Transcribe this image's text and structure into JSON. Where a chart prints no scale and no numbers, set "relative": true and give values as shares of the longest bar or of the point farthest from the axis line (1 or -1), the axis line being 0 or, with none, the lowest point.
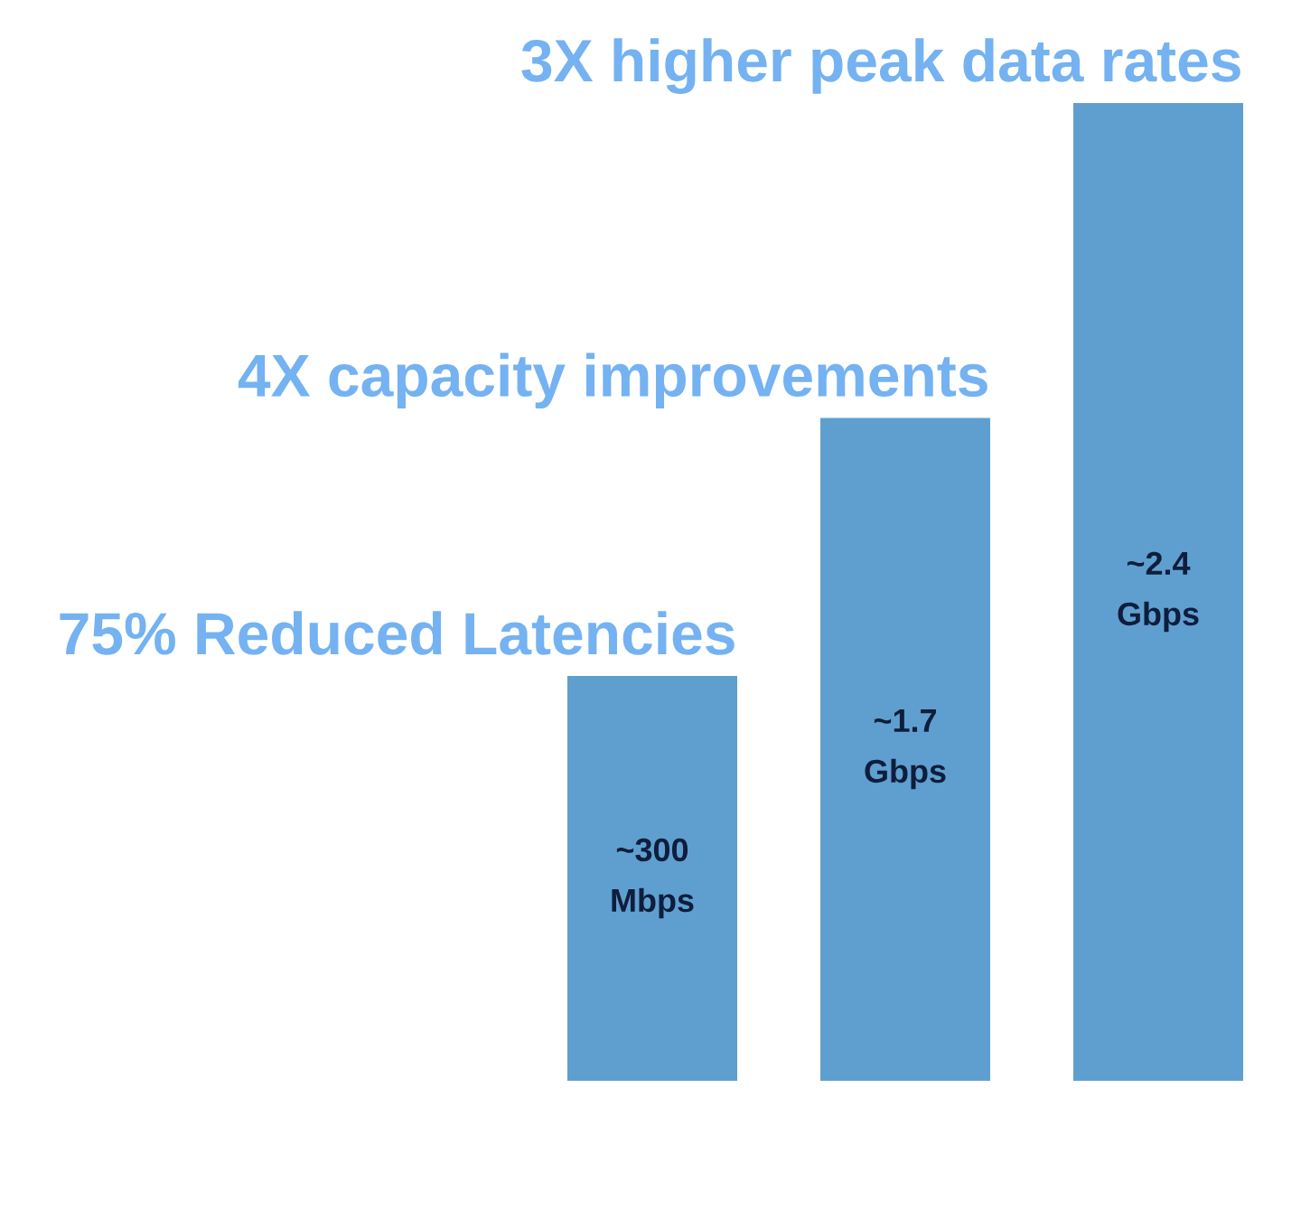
{
  "chart_data": {
    "type": "bar",
    "relative": true,
    "categories": [
      null,
      null,
      null
    ],
    "values": [
      0.414,
      0.678,
      1
    ],
    "color": "#5f9fd0",
    "annotations": [
      "75% Reduced Latencies",
      "4X capacity improvements",
      "3X higher peak data rates",
      "~300 Mbps",
      "~1.7 Gbps",
      "~2.4 Gbps"
    ]
  }
}
